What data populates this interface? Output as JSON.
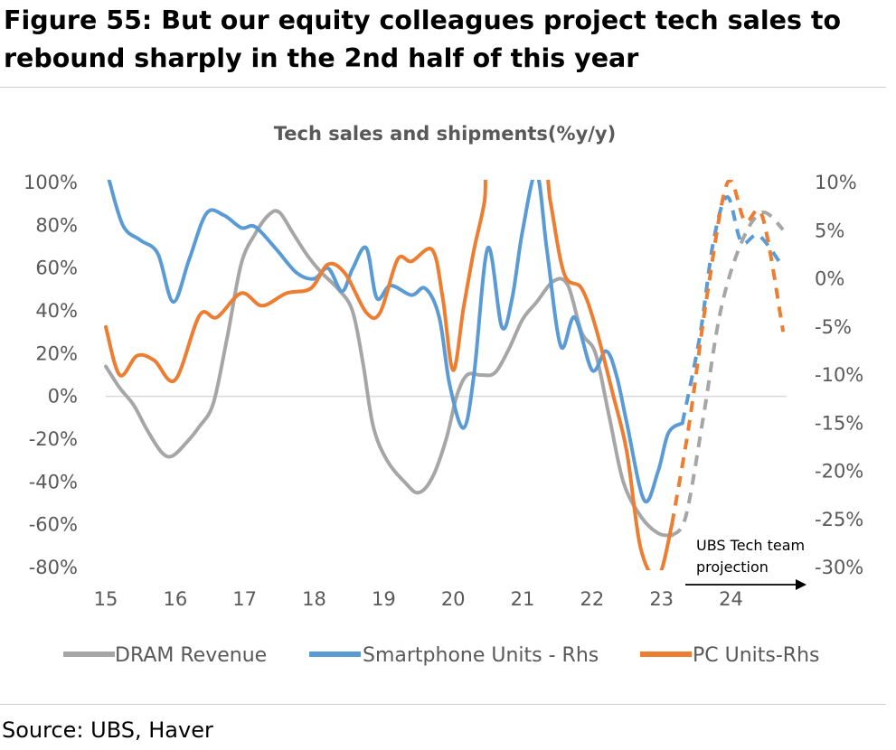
{
  "figure": {
    "title_line1": "Figure 55: But our equity colleagues project tech sales to",
    "title_line2": "rebound sharply in the 2nd half of this year",
    "source": "Source: UBS, Haver"
  },
  "chart_data": {
    "type": "line",
    "title": "Tech sales and shipments(%y/y)",
    "xlabel": "",
    "ylabel": "",
    "x_ticks": [
      "15",
      "16",
      "17",
      "18",
      "19",
      "20",
      "21",
      "22",
      "23",
      "24"
    ],
    "xlim": [
      2015.0,
      2024.8
    ],
    "y_left": {
      "ticks": [
        "100%",
        "80%",
        "60%",
        "40%",
        "20%",
        "0%",
        "-20%",
        "-40%",
        "-60%",
        "-80%"
      ],
      "ylim": [
        -80,
        100
      ]
    },
    "y_right": {
      "ticks": [
        "10%",
        "5%",
        "0%",
        "-5%",
        "-10%",
        "-15%",
        "-20%",
        "-25%",
        "-30%"
      ],
      "ylim": [
        -30,
        10
      ]
    },
    "zero_line": true,
    "grid": false,
    "legend_position": "bottom",
    "annotation": {
      "line1": "UBS Tech team",
      "line2": "projection",
      "arrow": "right"
    },
    "series": [
      {
        "name": "DRAM Revenue",
        "axis": "left",
        "color": "#a6a6a6",
        "actual": [
          [
            2015.0,
            14
          ],
          [
            2015.2,
            4
          ],
          [
            2015.4,
            -4
          ],
          [
            2015.6,
            -16
          ],
          [
            2015.8,
            -26
          ],
          [
            2015.95,
            -28
          ],
          [
            2016.15,
            -22
          ],
          [
            2016.35,
            -14
          ],
          [
            2016.55,
            -3
          ],
          [
            2016.75,
            28
          ],
          [
            2016.95,
            62
          ],
          [
            2017.15,
            76
          ],
          [
            2017.35,
            85
          ],
          [
            2017.5,
            86
          ],
          [
            2017.7,
            76
          ],
          [
            2017.9,
            66
          ],
          [
            2018.1,
            58
          ],
          [
            2018.35,
            50
          ],
          [
            2018.55,
            40
          ],
          [
            2018.7,
            16
          ],
          [
            2018.85,
            -14
          ],
          [
            2019.05,
            -30
          ],
          [
            2019.3,
            -40
          ],
          [
            2019.5,
            -45
          ],
          [
            2019.7,
            -38
          ],
          [
            2019.9,
            -20
          ],
          [
            2020.05,
            0
          ],
          [
            2020.2,
            10
          ],
          [
            2020.4,
            10
          ],
          [
            2020.6,
            11
          ],
          [
            2020.8,
            22
          ],
          [
            2021.0,
            36
          ],
          [
            2021.2,
            44
          ],
          [
            2021.45,
            54
          ],
          [
            2021.65,
            52
          ],
          [
            2021.85,
            30
          ],
          [
            2022.05,
            20
          ],
          [
            2022.25,
            -10
          ],
          [
            2022.45,
            -40
          ],
          [
            2022.7,
            -56
          ],
          [
            2022.95,
            -64
          ],
          [
            2023.15,
            -65
          ]
        ],
        "projection": [
          [
            2023.15,
            -65
          ],
          [
            2023.35,
            -56
          ],
          [
            2023.6,
            -10
          ],
          [
            2023.85,
            40
          ],
          [
            2024.15,
            72
          ],
          [
            2024.45,
            86
          ],
          [
            2024.75,
            78
          ]
        ]
      },
      {
        "name": "Smartphone Units - Rhs",
        "axis": "right",
        "color": "#5b9bd5",
        "actual": [
          [
            2015.05,
            10.2
          ],
          [
            2015.25,
            5.5
          ],
          [
            2015.5,
            4
          ],
          [
            2015.75,
            2.6
          ],
          [
            2015.97,
            -2.4
          ],
          [
            2016.2,
            2
          ],
          [
            2016.45,
            6.8
          ],
          [
            2016.7,
            6.6
          ],
          [
            2016.95,
            5.3
          ],
          [
            2017.15,
            5.4
          ],
          [
            2017.45,
            3.1
          ],
          [
            2017.75,
            0.6
          ],
          [
            2018.0,
            0
          ],
          [
            2018.2,
            1.1
          ],
          [
            2018.4,
            -1.3
          ],
          [
            2018.55,
            1
          ],
          [
            2018.75,
            3.2
          ],
          [
            2018.9,
            -2
          ],
          [
            2019.1,
            -0.7
          ],
          [
            2019.4,
            -1.7
          ],
          [
            2019.6,
            -1
          ],
          [
            2019.8,
            -4
          ],
          [
            2019.95,
            -11
          ],
          [
            2020.15,
            -15.5
          ],
          [
            2020.3,
            -10
          ],
          [
            2020.5,
            3.2
          ],
          [
            2020.7,
            -5
          ],
          [
            2020.85,
            -2
          ],
          [
            2021.0,
            5
          ],
          [
            2021.2,
            11
          ],
          [
            2021.35,
            3
          ],
          [
            2021.55,
            -7
          ],
          [
            2021.75,
            -4
          ],
          [
            2022.0,
            -9.5
          ],
          [
            2022.2,
            -7.5
          ],
          [
            2022.35,
            -10
          ],
          [
            2022.5,
            -15
          ],
          [
            2022.75,
            -23
          ],
          [
            2022.95,
            -20
          ],
          [
            2023.1,
            -16
          ],
          [
            2023.3,
            -15
          ]
        ],
        "projection": [
          [
            2023.3,
            -15
          ],
          [
            2023.55,
            -6
          ],
          [
            2023.75,
            4
          ],
          [
            2023.95,
            8.5
          ],
          [
            2024.15,
            3.8
          ],
          [
            2024.4,
            4.5
          ],
          [
            2024.75,
            1.2
          ]
        ]
      },
      {
        "name": "PC Units-Rhs",
        "axis": "right",
        "color": "#ed7d31",
        "actual": [
          [
            2015.0,
            -5
          ],
          [
            2015.2,
            -10
          ],
          [
            2015.45,
            -8
          ],
          [
            2015.7,
            -8.5
          ],
          [
            2016.0,
            -10.5
          ],
          [
            2016.35,
            -3.8
          ],
          [
            2016.6,
            -4
          ],
          [
            2016.95,
            -1.5
          ],
          [
            2017.25,
            -2.8
          ],
          [
            2017.6,
            -1.5
          ],
          [
            2017.95,
            -1
          ],
          [
            2018.2,
            1.5
          ],
          [
            2018.45,
            0.5
          ],
          [
            2018.75,
            -3.5
          ],
          [
            2018.95,
            -3.5
          ],
          [
            2019.2,
            2
          ],
          [
            2019.4,
            1.8
          ],
          [
            2019.7,
            3
          ],
          [
            2019.85,
            -2
          ],
          [
            2020.0,
            -9.5
          ],
          [
            2020.15,
            -3
          ],
          [
            2020.3,
            3
          ],
          [
            2020.45,
            8
          ],
          [
            2020.55,
            14
          ],
          [
            2021.25,
            14
          ],
          [
            2021.4,
            8
          ],
          [
            2021.6,
            0.5
          ],
          [
            2021.85,
            -1
          ],
          [
            2022.05,
            -5
          ],
          [
            2022.3,
            -12
          ],
          [
            2022.5,
            -18
          ],
          [
            2022.7,
            -28
          ],
          [
            2022.95,
            -31
          ],
          [
            2023.15,
            -25.5
          ]
        ],
        "projection": [
          [
            2023.15,
            -25.5
          ],
          [
            2023.4,
            -15
          ],
          [
            2023.65,
            -2
          ],
          [
            2023.95,
            10
          ],
          [
            2024.2,
            6
          ],
          [
            2024.45,
            6.5
          ],
          [
            2024.75,
            -5.5
          ]
        ]
      }
    ]
  }
}
